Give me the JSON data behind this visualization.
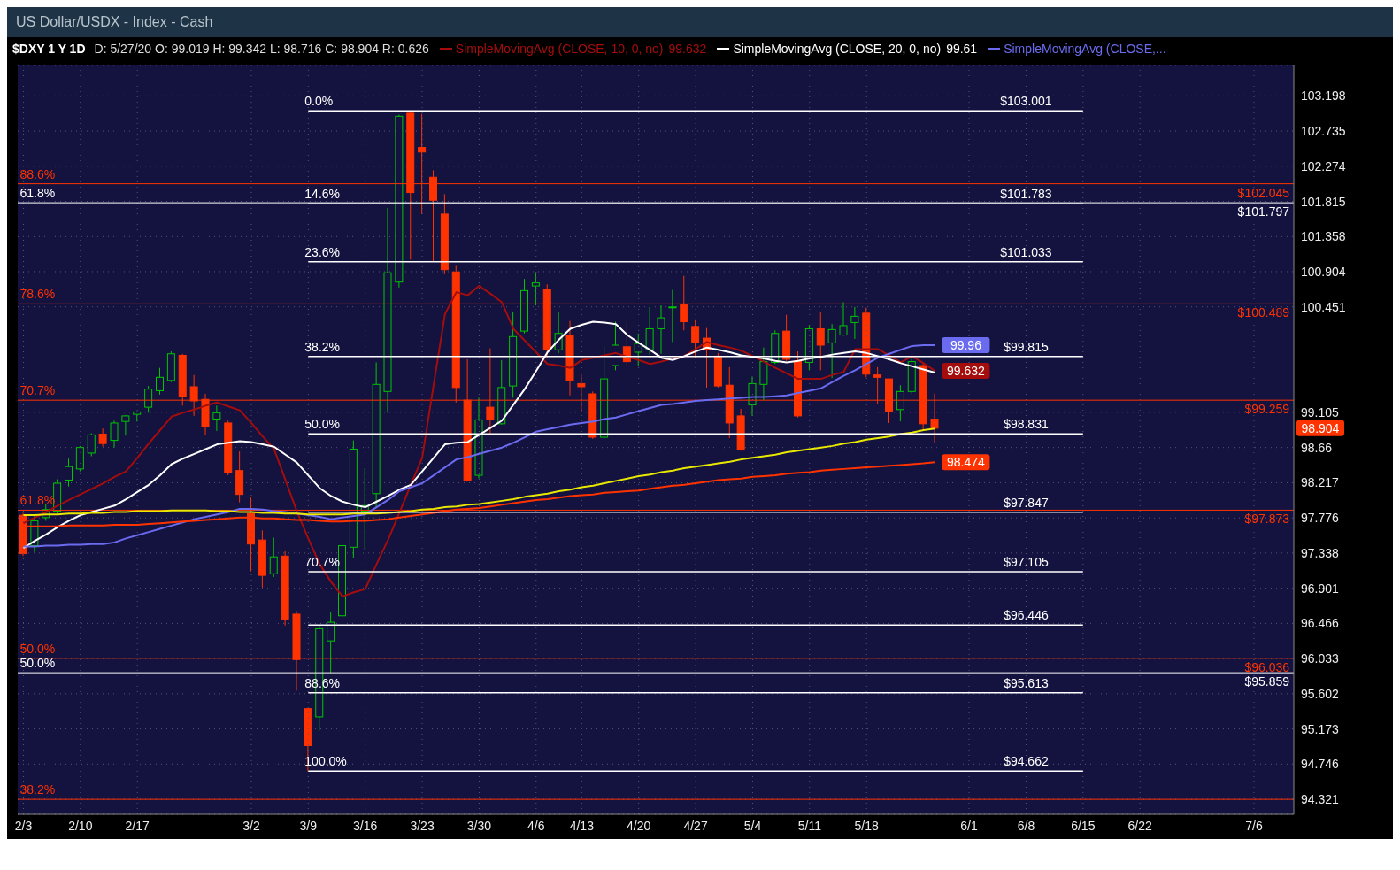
{
  "chart_data": {
    "type": "candlestick",
    "title": "$DXY 1 Y 1D",
    "subtitle": "US Dollar/USDX - Index - Cash",
    "categories": [
      "2/3",
      null,
      null,
      null,
      null,
      "2/10",
      null,
      null,
      null,
      null,
      "2/17",
      null,
      null,
      null,
      null,
      null,
      null,
      null,
      null,
      null,
      "3/2",
      null,
      null,
      null,
      null,
      "3/9",
      null,
      null,
      null,
      null,
      "3/16",
      null,
      null,
      null,
      null,
      "3/23",
      null,
      null,
      null,
      null,
      "3/30",
      null,
      null,
      null,
      null,
      "4/6",
      null,
      null,
      null,
      "4/13",
      null,
      null,
      null,
      null,
      "4/20",
      null,
      null,
      null,
      null,
      "4/27",
      null,
      null,
      null,
      null,
      "5/4",
      null,
      null,
      null,
      null,
      "5/11",
      null,
      null,
      null,
      null,
      "5/18",
      null,
      null,
      null,
      null,
      null,
      null,
      null,
      null,
      "6/1",
      null,
      null,
      null,
      null,
      "6/8",
      null,
      null,
      null,
      null,
      "6/15",
      null,
      null,
      null,
      null,
      "6/22",
      null,
      null,
      null,
      null,
      null,
      null,
      null,
      null,
      null,
      "7/6",
      null,
      null,
      null
    ],
    "ohlc": [
      [
        97.81,
        97.84,
        97.3,
        97.33
      ],
      [
        97.43,
        97.82,
        97.35,
        97.74
      ],
      [
        97.78,
        97.95,
        97.74,
        97.88
      ],
      [
        97.86,
        98.26,
        97.83,
        98.21
      ],
      [
        98.25,
        98.52,
        98.17,
        98.42
      ],
      [
        98.39,
        98.68,
        98.36,
        98.66
      ],
      [
        98.59,
        98.84,
        98.55,
        98.82
      ],
      [
        98.83,
        98.9,
        98.67,
        98.71
      ],
      [
        98.75,
        99.0,
        98.66,
        98.97
      ],
      [
        98.99,
        99.07,
        98.81,
        99.06
      ],
      [
        99.08,
        99.12,
        98.99,
        99.11
      ],
      [
        99.17,
        99.44,
        99.1,
        99.4
      ],
      [
        99.38,
        99.67,
        99.33,
        99.55
      ],
      [
        99.51,
        99.88,
        99.49,
        99.85
      ],
      [
        99.83,
        99.85,
        99.19,
        99.3
      ],
      [
        99.43,
        99.58,
        99.06,
        99.25
      ],
      [
        99.27,
        99.34,
        98.82,
        98.93
      ],
      [
        99.02,
        99.19,
        98.87,
        99.1
      ],
      [
        98.97,
        99.0,
        98.31,
        98.34
      ],
      [
        98.37,
        98.61,
        97.97,
        98.07
      ],
      [
        97.83,
        98.03,
        97.11,
        97.45
      ],
      [
        97.5,
        97.62,
        96.91,
        97.06
      ],
      [
        97.08,
        97.53,
        97.04,
        97.29
      ],
      [
        97.3,
        97.36,
        96.44,
        96.52
      ],
      [
        96.58,
        96.62,
        95.64,
        96.02
      ],
      [
        95.42,
        95.42,
        94.66,
        94.97
      ],
      [
        95.32,
        96.44,
        95.15,
        96.4
      ],
      [
        96.25,
        96.6,
        95.86,
        96.48
      ],
      [
        96.56,
        98.25,
        96.0,
        97.43
      ],
      [
        97.41,
        98.75,
        97.28,
        98.64
      ],
      [
        97.86,
        98.4,
        97.38,
        97.93
      ],
      [
        98.08,
        99.74,
        97.91,
        99.46
      ],
      [
        99.37,
        101.73,
        99.1,
        100.89
      ],
      [
        100.77,
        102.95,
        100.7,
        102.93
      ],
      [
        102.97,
        103.0,
        101.06,
        101.93
      ],
      [
        102.52,
        102.96,
        101.65,
        102.46
      ],
      [
        102.13,
        102.22,
        101.03,
        101.83
      ],
      [
        101.65,
        101.91,
        100.87,
        100.93
      ],
      [
        100.9,
        100.99,
        99.23,
        99.42
      ],
      [
        99.26,
        99.78,
        98.23,
        98.25
      ],
      [
        98.31,
        99.29,
        98.27,
        99.01
      ],
      [
        99.17,
        99.92,
        98.83,
        99.01
      ],
      [
        98.96,
        99.77,
        98.95,
        99.42
      ],
      [
        99.44,
        100.38,
        99.29,
        100.07
      ],
      [
        100.14,
        100.81,
        100.11,
        100.66
      ],
      [
        100.72,
        100.88,
        100.47,
        100.76
      ],
      [
        100.68,
        100.74,
        99.8,
        99.9
      ],
      [
        99.9,
        100.38,
        99.86,
        100.11
      ],
      [
        100.09,
        100.27,
        99.32,
        99.51
      ],
      [
        99.47,
        99.59,
        99.11,
        99.43
      ],
      [
        99.34,
        99.37,
        98.77,
        98.79
      ],
      [
        98.79,
        99.94,
        98.77,
        99.53
      ],
      [
        99.7,
        100.26,
        99.64,
        99.96
      ],
      [
        99.94,
        100.26,
        99.7,
        99.75
      ],
      [
        99.87,
        100.11,
        99.69,
        99.98
      ],
      [
        99.9,
        100.45,
        99.84,
        100.17
      ],
      [
        100.17,
        100.47,
        99.85,
        100.31
      ],
      [
        100.44,
        100.67,
        100.0,
        100.45
      ],
      [
        100.48,
        100.85,
        100.15,
        100.26
      ],
      [
        100.2,
        100.29,
        99.79,
        100.0
      ],
      [
        100.05,
        100.18,
        99.42,
        99.91
      ],
      [
        99.82,
        99.86,
        99.42,
        99.44
      ],
      [
        99.45,
        99.68,
        98.78,
        98.97
      ],
      [
        99.06,
        99.15,
        98.62,
        98.63
      ],
      [
        99.2,
        99.56,
        99.06,
        99.47
      ],
      [
        99.46,
        99.93,
        99.26,
        99.75
      ],
      [
        99.74,
        100.15,
        99.72,
        100.11
      ],
      [
        100.14,
        100.35,
        99.76,
        99.78
      ],
      [
        99.76,
        99.88,
        99.04,
        99.06
      ],
      [
        99.74,
        100.22,
        99.64,
        100.17
      ],
      [
        100.17,
        100.38,
        99.64,
        99.96
      ],
      [
        99.99,
        100.23,
        99.54,
        100.16
      ],
      [
        100.09,
        100.51,
        100.08,
        100.21
      ],
      [
        100.25,
        100.45,
        100.04,
        100.33
      ],
      [
        100.37,
        100.44,
        99.55,
        99.59
      ],
      [
        99.58,
        99.68,
        99.21,
        99.55
      ],
      [
        99.53,
        99.53,
        98.97,
        99.12
      ],
      [
        99.14,
        99.45,
        98.99,
        99.37
      ],
      [
        99.37,
        99.79,
        99.34,
        99.75
      ],
      [
        99.7,
        99.72,
        98.88,
        98.96
      ],
      [
        99.019,
        99.342,
        98.716,
        98.904
      ],
      null,
      null,
      null,
      null,
      null,
      null,
      null,
      null,
      null,
      null,
      null,
      null,
      null,
      null,
      null,
      null,
      null,
      null,
      null,
      null,
      null,
      null,
      null,
      null,
      null,
      null,
      null,
      null,
      null,
      null,
      null
    ],
    "colors": [
      "#ff3300",
      "#00c800",
      "#00c800",
      "#00c800",
      "#00c800",
      "#00c800",
      "#00c800",
      "#ff3300",
      "#00c800",
      "#00c800",
      "#00c800",
      "#00c800",
      "#00c800",
      "#00c800",
      "#ff3300",
      "#ff3300",
      "#ff3300",
      "#00c800",
      "#ff3300",
      "#ff3300",
      "#ff3300",
      "#ff3300",
      "#00c800",
      "#ff3300",
      "#ff3300",
      "#ff3300",
      "#00c800",
      "#00c800",
      "#00c800",
      "#00c800",
      "#00c800",
      "#00c800",
      "#00c800",
      "#00c800",
      "#ff3300",
      "#ff3300",
      "#ff3300",
      "#ff3300",
      "#ff3300",
      "#ff3300",
      "#00c800",
      "#ff3300",
      "#00c800",
      "#00c800",
      "#00c800",
      "#00c800",
      "#ff3300",
      "#00c800",
      "#ff3300",
      "#ff3300",
      "#ff3300",
      "#00c800",
      "#00c800",
      "#ff3300",
      "#00c800",
      "#00c800",
      "#00c800",
      "#00c800",
      "#ff3300",
      "#ff3300",
      "#ff3300",
      "#ff3300",
      "#ff3300",
      "#ff3300",
      "#00c800",
      "#00c800",
      "#00c800",
      "#ff3300",
      "#ff3300",
      "#00c800",
      "#ff3300",
      "#00c800",
      "#00c800",
      "#00c800",
      "#ff3300",
      "#ff3300",
      "#ff3300",
      "#00c800",
      "#00c800",
      "#ff3300",
      "#ff3300",
      null,
      null,
      null,
      null,
      null,
      null,
      null,
      null,
      null,
      null,
      null,
      null,
      null,
      null,
      null,
      null,
      null,
      null,
      null,
      null,
      null,
      null,
      null,
      null,
      null,
      null,
      null,
      null,
      null,
      null,
      null
    ],
    "series": [
      {
        "type": "line",
        "name": "SimpleMovingAvg (CLOSE, 10, 0, no)",
        "color": "#a50d0d",
        "values": [
          97.71,
          97.78,
          97.85,
          97.93,
          98.0,
          98.07,
          98.14,
          98.21,
          98.29,
          98.36,
          98.53,
          98.71,
          98.88,
          99.05,
          99.1,
          99.14,
          99.19,
          99.23,
          99.18,
          99.13,
          98.97,
          98.8,
          98.64,
          98.25,
          97.86,
          97.52,
          97.2,
          96.98,
          96.8,
          96.85,
          96.89,
          97.2,
          97.5,
          97.84,
          98.19,
          98.53,
          99.45,
          100.36,
          100.64,
          100.6,
          100.72,
          100.62,
          100.51,
          100.17,
          100.02,
          99.87,
          99.72,
          99.7,
          99.67,
          99.77,
          99.8,
          99.83,
          99.86,
          99.81,
          99.77,
          99.72,
          99.75,
          99.79,
          99.82,
          99.91,
          100.0,
          99.96,
          99.93,
          99.89,
          99.82,
          99.75,
          99.67,
          99.6,
          99.53,
          99.53,
          99.53,
          99.58,
          99.62,
          99.91,
          99.91,
          99.91,
          99.83,
          99.74,
          99.82,
          99.73,
          99.632,
          null,
          null,
          null,
          null,
          null,
          null,
          null,
          null,
          null,
          null,
          null,
          null,
          null,
          null,
          null,
          null,
          null,
          null,
          null,
          null,
          null,
          null,
          null,
          null,
          null,
          null,
          null,
          null,
          null,
          null,
          null
        ],
        "value_labels": [
          null,
          null,
          null,
          null,
          null,
          null,
          null,
          null,
          null,
          null,
          null,
          null,
          null,
          null,
          null,
          null,
          null,
          null,
          null,
          null,
          null,
          null,
          null,
          null,
          null,
          null,
          null,
          null,
          null,
          null,
          null,
          null,
          null,
          null,
          null,
          null,
          null,
          null,
          null,
          null,
          null,
          null,
          null,
          null,
          null,
          null,
          null,
          null,
          null,
          null,
          null,
          null,
          null,
          null,
          null,
          null,
          null,
          null,
          null,
          null,
          null,
          null,
          null,
          null,
          null,
          null,
          null,
          null,
          null,
          null,
          null,
          null,
          null,
          null,
          null,
          null,
          null,
          null,
          null,
          null,
          "99.632",
          null,
          null,
          null,
          null,
          null,
          null,
          null,
          null,
          null,
          null,
          null,
          null,
          null,
          null,
          null,
          null,
          null,
          null,
          null,
          null,
          null,
          null,
          null,
          null,
          null,
          null,
          null,
          null,
          null,
          null,
          null
        ]
      },
      {
        "type": "line",
        "name": "SimpleMovingAvg (CLOSE, 20, 0, no)",
        "color": "#ffffff",
        "values": [
          97.4,
          97.49,
          97.57,
          97.66,
          97.74,
          97.81,
          97.85,
          97.89,
          97.93,
          98.01,
          98.1,
          98.19,
          98.31,
          98.45,
          98.52,
          98.58,
          98.64,
          98.7,
          98.72,
          98.74,
          98.73,
          98.7,
          98.67,
          98.57,
          98.47,
          98.31,
          98.15,
          98.05,
          97.98,
          97.94,
          97.91,
          97.98,
          98.05,
          98.13,
          98.19,
          98.36,
          98.53,
          98.7,
          98.72,
          98.73,
          98.82,
          98.91,
          99.0,
          99.2,
          99.4,
          99.63,
          99.87,
          100.03,
          100.17,
          100.22,
          100.26,
          100.25,
          100.23,
          100.09,
          99.99,
          99.9,
          99.8,
          99.77,
          99.82,
          99.88,
          99.93,
          99.9,
          99.87,
          99.83,
          99.81,
          99.79,
          99.76,
          99.74,
          99.76,
          99.79,
          99.81,
          99.84,
          99.86,
          99.88,
          99.86,
          99.82,
          99.78,
          99.73,
          99.69,
          99.65,
          99.61,
          null,
          null,
          null,
          null,
          null,
          null,
          null,
          null,
          null,
          null,
          null,
          null,
          null,
          null,
          null,
          null,
          null,
          null,
          null,
          null,
          null,
          null,
          null,
          null,
          null,
          null,
          null,
          null,
          null,
          null,
          null
        ]
      },
      {
        "type": "line",
        "name": "SimpleMovingAvg (CLOSE,...",
        "color": "#6b6bf0",
        "values": [
          97.42,
          97.42,
          97.43,
          97.43,
          97.44,
          97.44,
          97.45,
          97.45,
          97.47,
          97.52,
          97.56,
          97.6,
          97.64,
          97.68,
          97.72,
          97.76,
          97.79,
          97.82,
          97.85,
          97.89,
          97.89,
          97.88,
          97.86,
          97.85,
          97.83,
          97.81,
          97.79,
          97.76,
          97.78,
          97.8,
          97.82,
          97.91,
          98.0,
          98.11,
          98.16,
          98.21,
          98.31,
          98.41,
          98.51,
          98.54,
          98.58,
          98.62,
          98.66,
          98.72,
          98.79,
          98.86,
          98.89,
          98.92,
          98.95,
          98.97,
          98.99,
          99.02,
          99.04,
          99.08,
          99.12,
          99.16,
          99.2,
          99.21,
          99.23,
          99.25,
          99.26,
          99.27,
          99.28,
          99.29,
          99.3,
          99.3,
          99.31,
          99.32,
          99.35,
          99.38,
          99.41,
          99.49,
          99.57,
          99.64,
          99.72,
          99.8,
          99.85,
          99.9,
          99.95,
          99.96,
          99.96,
          null,
          null,
          null,
          null,
          null,
          null,
          null,
          null,
          null,
          null,
          null,
          null,
          null,
          null,
          null,
          null,
          null,
          null,
          null,
          null,
          null,
          null,
          null,
          null,
          null,
          null,
          null,
          null,
          null,
          null,
          null
        ],
        "value_labels": [
          null,
          null,
          null,
          null,
          null,
          null,
          null,
          null,
          null,
          null,
          null,
          null,
          null,
          null,
          null,
          null,
          null,
          null,
          null,
          null,
          null,
          null,
          null,
          null,
          null,
          null,
          null,
          null,
          null,
          null,
          null,
          null,
          null,
          null,
          null,
          null,
          null,
          null,
          null,
          null,
          null,
          null,
          null,
          null,
          null,
          null,
          null,
          null,
          null,
          null,
          null,
          null,
          null,
          null,
          null,
          null,
          null,
          null,
          null,
          null,
          null,
          null,
          null,
          null,
          null,
          null,
          null,
          null,
          null,
          null,
          null,
          null,
          null,
          null,
          null,
          null,
          null,
          null,
          null,
          null,
          "99.96",
          null,
          null,
          null,
          null,
          null,
          null,
          null,
          null,
          null,
          null,
          null,
          null,
          null,
          null,
          null,
          null,
          null,
          null,
          null,
          null,
          null,
          null,
          null,
          null,
          null,
          null,
          null,
          null,
          null,
          null,
          null
        ]
      },
      {
        "type": "line",
        "color": "#e8e800",
        "values": [
          97.81,
          97.81,
          97.82,
          97.82,
          97.83,
          97.83,
          97.84,
          97.84,
          97.85,
          97.85,
          97.86,
          97.86,
          97.86,
          97.87,
          97.87,
          97.87,
          97.87,
          97.86,
          97.86,
          97.85,
          97.85,
          97.84,
          97.84,
          97.83,
          97.83,
          97.82,
          97.82,
          97.82,
          97.82,
          97.83,
          97.83,
          97.83,
          97.84,
          97.85,
          97.86,
          97.88,
          97.89,
          97.91,
          97.92,
          97.94,
          97.95,
          97.97,
          97.99,
          98.01,
          98.04,
          98.06,
          98.08,
          98.11,
          98.13,
          98.16,
          98.18,
          98.21,
          98.24,
          98.27,
          98.3,
          98.32,
          98.35,
          98.37,
          98.4,
          98.42,
          98.44,
          98.46,
          98.48,
          98.51,
          98.53,
          98.55,
          98.57,
          98.6,
          98.62,
          98.64,
          98.66,
          98.68,
          98.71,
          98.73,
          98.76,
          98.78,
          98.8,
          98.83,
          98.85,
          98.88,
          98.9,
          null,
          null,
          null,
          null,
          null,
          null,
          null,
          null,
          null,
          null,
          null,
          null,
          null,
          null,
          null,
          null,
          null,
          null,
          null,
          null,
          null,
          null,
          null,
          null,
          null,
          null,
          null,
          null,
          null,
          null,
          null
        ]
      },
      {
        "type": "line",
        "color": "#ff3300",
        "values": [
          97.67,
          97.67,
          97.67,
          97.67,
          97.68,
          97.68,
          97.68,
          97.68,
          97.69,
          97.69,
          97.69,
          97.7,
          97.71,
          97.72,
          97.73,
          97.74,
          97.75,
          97.76,
          97.77,
          97.78,
          97.78,
          97.77,
          97.77,
          97.76,
          97.75,
          97.75,
          97.74,
          97.73,
          97.73,
          97.74,
          97.74,
          97.75,
          97.76,
          97.78,
          97.8,
          97.82,
          97.84,
          97.86,
          97.88,
          97.89,
          97.9,
          97.92,
          97.94,
          97.96,
          97.98,
          98.0,
          98.01,
          98.03,
          98.05,
          98.06,
          98.07,
          98.09,
          98.1,
          98.11,
          98.12,
          98.14,
          98.16,
          98.18,
          98.19,
          98.21,
          98.23,
          98.25,
          98.26,
          98.27,
          98.29,
          98.3,
          98.31,
          98.33,
          98.34,
          98.35,
          98.37,
          98.38,
          98.39,
          98.4,
          98.41,
          98.42,
          98.43,
          98.44,
          98.45,
          98.46,
          98.474,
          null,
          null,
          null,
          null,
          null,
          null,
          null,
          null,
          null,
          null,
          null,
          null,
          null,
          null,
          null,
          null,
          null,
          null,
          null,
          null,
          null,
          null,
          null,
          null,
          null,
          null,
          null,
          null,
          null,
          null,
          null
        ],
        "value_labels": [
          null,
          null,
          null,
          null,
          null,
          null,
          null,
          null,
          null,
          null,
          null,
          null,
          null,
          null,
          null,
          null,
          null,
          null,
          null,
          null,
          null,
          null,
          null,
          null,
          null,
          null,
          null,
          null,
          null,
          null,
          null,
          null,
          null,
          null,
          null,
          null,
          null,
          null,
          null,
          null,
          null,
          null,
          null,
          null,
          null,
          null,
          null,
          null,
          null,
          null,
          null,
          null,
          null,
          null,
          null,
          null,
          null,
          null,
          null,
          null,
          null,
          null,
          null,
          null,
          null,
          null,
          null,
          null,
          null,
          null,
          null,
          null,
          null,
          null,
          null,
          null,
          null,
          null,
          null,
          null,
          "98.474",
          null,
          null,
          null,
          null,
          null,
          null,
          null,
          null,
          null,
          null,
          null,
          null,
          null,
          null,
          null,
          null,
          null,
          null,
          null,
          null,
          null,
          null,
          null,
          null,
          null,
          null,
          null,
          null,
          null,
          null,
          null
        ]
      },
      {
        "type": "line",
        "color": "#ffffff",
        "x": [
          "3/9",
          "6/15"
        ],
        "values": [
          103.001,
          103.001
        ]
      },
      {
        "type": "line",
        "color": "#ffffff",
        "x": [
          "3/9",
          "6/15"
        ],
        "values": [
          101.783,
          101.783
        ]
      },
      {
        "type": "line",
        "color": "#ffffff",
        "x": [
          "3/9",
          "6/15"
        ],
        "values": [
          101.033,
          101.033
        ]
      },
      {
        "type": "line",
        "color": "#ffffff",
        "x": [
          "3/9",
          "6/15"
        ],
        "values": [
          99.815,
          99.815
        ]
      },
      {
        "type": "line",
        "color": "#ffffff",
        "x": [
          "3/9",
          "6/15"
        ],
        "values": [
          98.831,
          98.831
        ]
      },
      {
        "type": "line",
        "color": "#ffffff",
        "x": [
          "3/9",
          "6/15"
        ],
        "values": [
          97.847,
          97.847
        ]
      },
      {
        "type": "line",
        "color": "#ffffff",
        "x": [
          "3/9",
          "6/15"
        ],
        "values": [
          97.105,
          97.105
        ]
      },
      {
        "type": "line",
        "color": "#ffffff",
        "x": [
          "3/9",
          "6/15"
        ],
        "values": [
          96.446,
          96.446
        ]
      },
      {
        "type": "line",
        "color": "#ffffff",
        "x": [
          "3/9",
          "6/15"
        ],
        "values": [
          95.613,
          95.613
        ]
      },
      {
        "type": "line",
        "color": "#ffffff",
        "x": [
          "3/9",
          "6/15"
        ],
        "values": [
          94.662,
          94.662
        ]
      }
    ],
    "ylim": [
      94.14,
      103.6
    ],
    "yticks": [
      94.321,
      94.746,
      95.173,
      95.602,
      96.033,
      96.466,
      96.901,
      97.338,
      97.776,
      98.217,
      98.66,
      99.105,
      100.451,
      100.904,
      101.358,
      101.815,
      102.274,
      102.735,
      103.198
    ],
    "log": true,
    "grid": true,
    "legend": "top",
    "ref_lines": [
      {
        "axis": "y",
        "value": 102.045,
        "label": "$102.045",
        "color": "#ff3300"
      },
      {
        "axis": "y",
        "value": 101.797,
        "label": "$101.797",
        "color": "#ffffff"
      },
      {
        "axis": "y",
        "value": 100.489,
        "label": "$100.489",
        "color": "#ff3300"
      },
      {
        "axis": "y",
        "value": 99.259,
        "label": "$99.259",
        "color": "#ff3300"
      },
      {
        "axis": "y",
        "value": 97.873,
        "label": "$97.873",
        "color": "#ff3300"
      },
      {
        "axis": "y",
        "value": 96.036,
        "label": "$96.036",
        "color": "#ff3300"
      },
      {
        "axis": "y",
        "value": 95.859,
        "label": "$95.859",
        "color": "#ffffff"
      },
      {
        "axis": "y",
        "value": 94.32,
        "color": "#ff3300"
      }
    ],
    "annotations": [
      "D: 5/27/20 O: 99.019 H: 99.342 L: 98.716 C: 98.904 R: 0.626",
      "99.632",
      "99.61",
      {
        "text": "88.6%",
        "y": 102.045
      },
      {
        "text": "61.8%",
        "y": 101.797
      },
      {
        "text": "78.6%",
        "y": 100.489
      },
      {
        "text": "70.7%",
        "y": 99.259
      },
      {
        "text": "61.8%",
        "y": 97.873
      },
      {
        "text": "50.0%",
        "y": 96.036
      },
      {
        "text": "50.0%",
        "y": 95.859
      },
      {
        "text": "38.2%",
        "y": 94.32
      },
      {
        "text": "0.0%",
        "x": "3/9",
        "y": 103.001
      },
      {
        "text": "14.6%",
        "x": "3/9",
        "y": 101.783
      },
      {
        "text": "23.6%",
        "x": "3/9",
        "y": 101.033
      },
      {
        "text": "38.2%",
        "x": "3/9",
        "y": 99.815
      },
      {
        "text": "50.0%",
        "x": "3/9",
        "y": 98.831
      },
      {
        "text": "70.7%",
        "x": "3/9",
        "y": 97.105
      },
      {
        "text": "88.6%",
        "x": "3/9",
        "y": 95.613
      },
      {
        "text": "100.0%",
        "x": "3/9",
        "y": 94.662
      },
      {
        "text": "$103.001",
        "x": "6/8",
        "y": 103.001
      },
      {
        "text": "$101.783",
        "x": "6/8",
        "y": 101.783
      },
      {
        "text": "$101.033",
        "x": "6/8",
        "y": 101.033
      },
      {
        "text": "$99.815",
        "x": "6/8",
        "y": 99.815
      },
      {
        "text": "$98.831",
        "x": "6/8",
        "y": 98.831
      },
      {
        "text": "$97.847",
        "x": "6/8",
        "y": 97.847
      },
      {
        "text": "$97.105",
        "x": "6/8",
        "y": 97.105
      },
      {
        "text": "$96.446",
        "x": "6/8",
        "y": 96.446
      },
      {
        "text": "$95.613",
        "x": "6/8",
        "y": 95.613
      },
      {
        "text": "$94.662",
        "x": "6/8",
        "y": 94.662
      },
      "98.904"
    ]
  }
}
